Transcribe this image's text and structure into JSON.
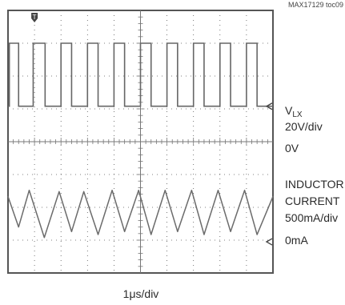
{
  "header": {
    "figure_id": "MAX17129 toc09"
  },
  "chart_data": {
    "type": "line",
    "title": "",
    "xlabel": "1μs/div",
    "grid": true,
    "trigger_marker": "T",
    "x_divisions": 10,
    "y_divisions": 8,
    "channels": [
      {
        "name": "VLX",
        "label_main": "V",
        "label_sub": "LX",
        "scale": "20V/div",
        "zero_label": "0V",
        "zero_div": 5.08,
        "low_div": 5.08,
        "high_div": 7.0,
        "pulses": [
          {
            "start": 0.05,
            "end": 0.4
          },
          {
            "start": 0.95,
            "end": 1.4
          },
          {
            "start": 2.0,
            "end": 2.4
          },
          {
            "start": 3.0,
            "end": 3.4
          },
          {
            "start": 4.0,
            "end": 4.4
          },
          {
            "start": 5.0,
            "end": 5.4
          },
          {
            "start": 6.0,
            "end": 6.4
          },
          {
            "start": 7.0,
            "end": 7.4
          },
          {
            "start": 8.0,
            "end": 8.4
          },
          {
            "start": 9.0,
            "end": 9.4
          }
        ]
      },
      {
        "name": "INDUCTOR CURRENT",
        "label_lines": [
          "INDUCTOR",
          "CURRENT"
        ],
        "scale": "500mA/div",
        "zero_label": "0mA",
        "zero_div": 0.95,
        "valley_div": 1.17,
        "peak_div": 2.5,
        "waveform_points": [
          [
            0.0,
            2.33
          ],
          [
            0.4,
            1.4
          ],
          [
            0.8,
            2.52
          ],
          [
            1.37,
            1.08
          ],
          [
            1.93,
            2.48
          ],
          [
            2.4,
            1.26
          ],
          [
            2.86,
            2.48
          ],
          [
            3.4,
            1.17
          ],
          [
            3.93,
            2.52
          ],
          [
            4.4,
            1.26
          ],
          [
            4.93,
            2.52
          ],
          [
            5.4,
            1.17
          ],
          [
            5.93,
            2.52
          ],
          [
            6.4,
            1.26
          ],
          [
            6.93,
            2.52
          ],
          [
            7.4,
            1.17
          ],
          [
            7.93,
            2.52
          ],
          [
            8.4,
            1.26
          ],
          [
            8.93,
            2.52
          ],
          [
            9.4,
            1.17
          ],
          [
            10.0,
            2.33
          ]
        ]
      }
    ]
  }
}
